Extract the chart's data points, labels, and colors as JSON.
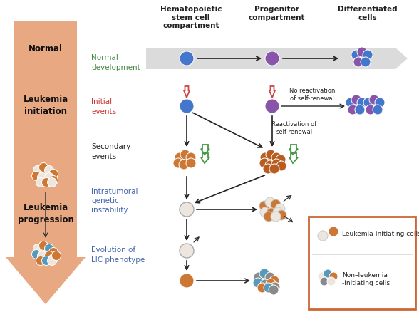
{
  "bg": "#ffffff",
  "arrow_fill": "#e8a882",
  "gray_arrow_fill": "#c8c8c8",
  "c_blue": "#4477cc",
  "c_purple": "#8855aa",
  "c_orange": "#cc7733",
  "c_white_cell": "#ede6de",
  "c_brown": "#9b4e1a",
  "c_dark_orange": "#b85c20",
  "c_gray": "#8a8a8a",
  "c_teal": "#5599bb",
  "c_red_flag": "#cc4444",
  "c_green_flag": "#449944",
  "c_green_text": "#448844",
  "c_red_text": "#cc3333",
  "c_blue_text": "#4466aa",
  "c_dark": "#222222",
  "c_legend_border": "#cc6633",
  "lbl_normal_dev": "Normal\ndevelopment",
  "lbl_initial": "Initial\nevents",
  "lbl_secondary": "Secondary\nevents",
  "lbl_intratumoral": "Intratumoral\ngenetic\ninstability",
  "lbl_evolution": "Evolution of\nLIC phenotype",
  "lbl_normal": "Normal",
  "lbl_leuk_init": "Leukemia\ninitiation",
  "lbl_leuk_prog": "Leukemia\nprogression",
  "lbl_hscc": "Hematopoietic\nstem cell\ncompartment",
  "lbl_prog": "Progenitor\ncompartment",
  "lbl_diff": "Differentiated\ncells",
  "lbl_no_react": "No reactivation\nof self-renewal",
  "lbl_react": "Reactivation of\nself-renewal",
  "lbl_lic": "Leukemia-initiating cells",
  "lbl_nlic": "Non–leukemia\n-initiating cells"
}
